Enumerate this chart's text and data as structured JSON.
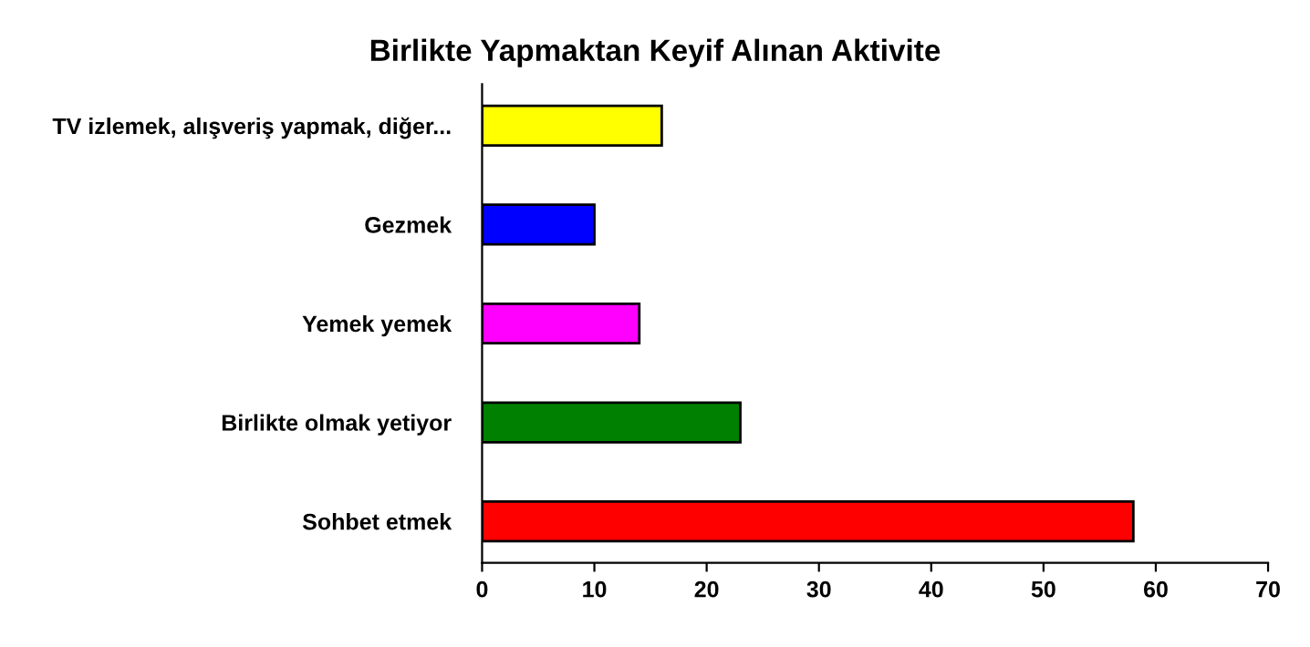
{
  "chart_data": {
    "type": "bar",
    "orientation": "horizontal",
    "title": "Birlikte Yapmaktan Keyif Alınan Aktivite",
    "categories": [
      "TV izlemek, alışveriş yapmak, diğer...",
      "Gezmek",
      "Yemek yemek",
      "Birlikte olmak yetiyor",
      "Sohbet etmek"
    ],
    "values": [
      16,
      10,
      14,
      23,
      58
    ],
    "colors": [
      "#ffff00",
      "#0000ff",
      "#ff00ff",
      "#008000",
      "#ff0000"
    ],
    "xlim": [
      0,
      70
    ],
    "xticks": [
      0,
      10,
      20,
      30,
      40,
      50,
      60,
      70
    ],
    "grid": false
  }
}
